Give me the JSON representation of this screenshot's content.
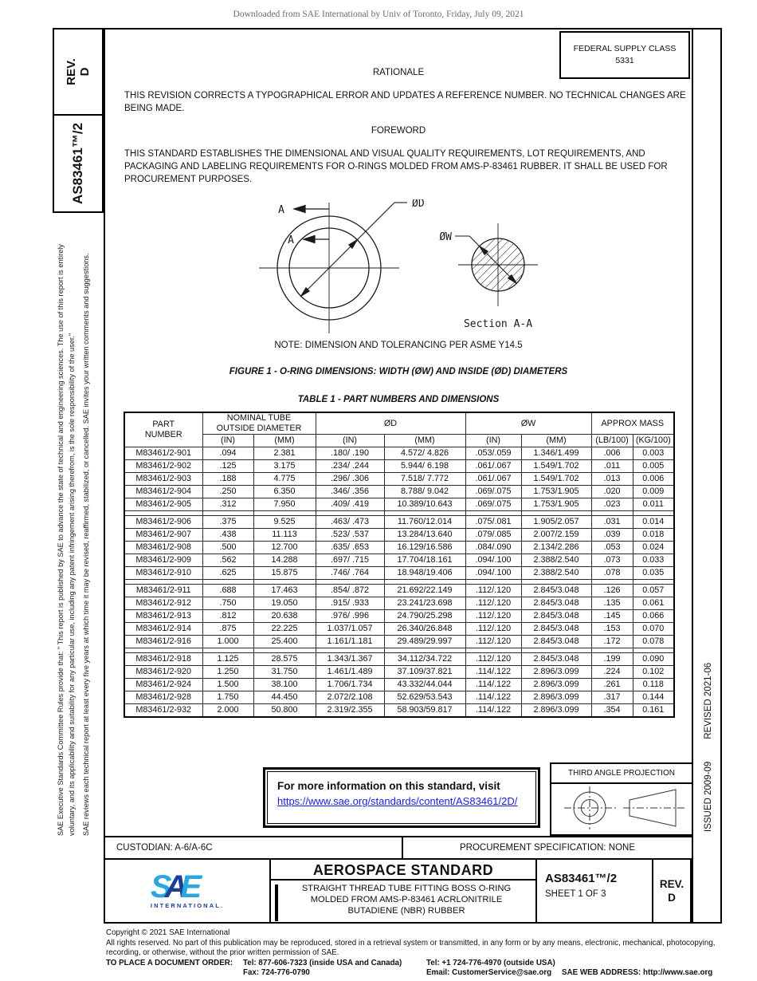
{
  "banner": "Downloaded from SAE International by Univ of Toronto, Friday, July 09, 2021",
  "sidebar": {
    "rev_label": "REV.",
    "rev_value": "D",
    "doc_number": "AS83461™/2",
    "legal_1": "SAE Executive Standards Committee Rules provide that: \" This report is published by SAE to advance the state of technical and engineering sciences. The use of this report is entirely voluntary, and its applicability and suitability for any particular use, including any patent infringement arising therefrom, is the sole responsibility of the user.\"",
    "legal_2": "SAE reviews each technical report at least every five years at which time it may be revised, reaffirmed, stabilized, or cancelled. SAE invites your written comments and suggestions."
  },
  "right_strip": {
    "issued": "ISSUED 2009-09",
    "revised": "REVISED 2021-06"
  },
  "header": {
    "fsc_line1": "FEDERAL SUPPLY CLASS",
    "fsc_line2": "5331"
  },
  "rationale": {
    "heading": "RATIONALE",
    "body": "THIS REVISION CORRECTS A TYPOGRAPHICAL ERROR AND UPDATES A REFERENCE NUMBER. NO TECHNICAL CHANGES ARE BEING MADE."
  },
  "foreword": {
    "heading": "FOREWORD",
    "body": "THIS STANDARD ESTABLISHES THE DIMENSIONAL AND VISUAL QUALITY REQUIREMENTS, LOT REQUIREMENTS, AND PACKAGING AND LABELING REQUIREMENTS FOR O-RINGS MOLDED FROM AMS-P-83461 RUBBER. IT SHALL BE USED FOR PROCUREMENT PURPOSES."
  },
  "figure": {
    "cut_label": "A",
    "label_d": "ØD",
    "label_w": "ØW",
    "section_label": "Section A-A",
    "note": "NOTE: DIMENSION AND TOLERANCING PER ASME Y14.5",
    "caption": "FIGURE 1 - O-RING DIMENSIONS: WIDTH (ØW) AND INSIDE (ØD) DIAMETERS"
  },
  "table": {
    "title": "TABLE 1 - PART NUMBERS AND DIMENSIONS",
    "headers": {
      "part1": "PART",
      "part2": "NUMBER",
      "nominal1": "NOMINAL TUBE",
      "nominal2": "OUTSIDE DIAMETER",
      "od": "ØD",
      "ow": "ØW",
      "mass": "APPROX MASS",
      "in": "(IN)",
      "mm": "(MM)",
      "lb": "(LB/100)",
      "kg": "(KG/100)"
    },
    "groups": [
      [
        [
          "M83461/2-901",
          ".094",
          "2.381",
          ".180/ .190",
          "4.572/ 4.826",
          ".053/.059",
          "1.346/1.499",
          ".006",
          "0.003"
        ],
        [
          "M83461/2-902",
          ".125",
          "3.175",
          ".234/ .244",
          "5.944/ 6.198",
          ".061/.067",
          "1.549/1.702",
          ".011",
          "0.005"
        ],
        [
          "M83461/2-903",
          ".188",
          "4.775",
          ".296/ .306",
          "7.518/ 7.772",
          ".061/.067",
          "1.549/1.702",
          ".013",
          "0.006"
        ],
        [
          "M83461/2-904",
          ".250",
          "6.350",
          ".346/ .356",
          "8.788/ 9.042",
          ".069/.075",
          "1.753/1.905",
          ".020",
          "0.009"
        ],
        [
          "M83461/2-905",
          ".312",
          "7.950",
          ".409/ .419",
          "10.389/10.643",
          ".069/.075",
          "1.753/1.905",
          ".023",
          "0.011"
        ]
      ],
      [
        [
          "M83461/2-906",
          ".375",
          "9.525",
          ".463/ .473",
          "11.760/12.014",
          ".075/.081",
          "1.905/2.057",
          ".031",
          "0.014"
        ],
        [
          "M83461/2-907",
          ".438",
          "11.113",
          ".523/ .537",
          "13.284/13.640",
          ".079/.085",
          "2.007/2.159",
          ".039",
          "0.018"
        ],
        [
          "M83461/2-908",
          ".500",
          "12.700",
          ".635/ .653",
          "16.129/16.586",
          ".084/.090",
          "2.134/2.286",
          ".053",
          "0.024"
        ],
        [
          "M83461/2-909",
          ".562",
          "14.288",
          ".697/ .715",
          "17.704/18.161",
          ".094/.100",
          "2.388/2.540",
          ".073",
          "0.033"
        ],
        [
          "M83461/2-910",
          ".625",
          "15.875",
          ".746/ .764",
          "18.948/19.406",
          ".094/.100",
          "2.388/2.540",
          ".078",
          "0.035"
        ]
      ],
      [
        [
          "M83461/2-911",
          ".688",
          "17.463",
          ".854/ .872",
          "21.692/22.149",
          ".112/.120",
          "2.845/3.048",
          ".126",
          "0.057"
        ],
        [
          "M83461/2-912",
          ".750",
          "19.050",
          ".915/ .933",
          "23.241/23.698",
          ".112/.120",
          "2.845/3.048",
          ".135",
          "0.061"
        ],
        [
          "M83461/2-913",
          ".812",
          "20.638",
          ".976/ .996",
          "24.790/25.298",
          ".112/.120",
          "2.845/3.048",
          ".145",
          "0.066"
        ],
        [
          "M83461/2-914",
          ".875",
          "22.225",
          "1.037/1.057",
          "26.340/26.848",
          ".112/.120",
          "2.845/3.048",
          ".153",
          "0.070"
        ],
        [
          "M83461/2-916",
          "1.000",
          "25.400",
          "1.161/1.181",
          "29.489/29.997",
          ".112/.120",
          "2.845/3.048",
          ".172",
          "0.078"
        ]
      ],
      [
        [
          "M83461/2-918",
          "1.125",
          "28.575",
          "1.343/1.367",
          "34.112/34.722",
          ".112/.120",
          "2.845/3.048",
          ".199",
          "0.090"
        ],
        [
          "M83461/2-920",
          "1.250",
          "31.750",
          "1.461/1.489",
          "37.109/37.821",
          ".114/.122",
          "2.896/3.099",
          ".224",
          "0.102"
        ],
        [
          "M83461/2-924",
          "1.500",
          "38.100",
          "1.706/1.734",
          "43.332/44.044",
          ".114/.122",
          "2.896/3.099",
          ".261",
          "0.118"
        ],
        [
          "M83461/2-928",
          "1.750",
          "44.450",
          "2.072/2.108",
          "52.629/53.543",
          ".114/.122",
          "2.896/3.099",
          ".317",
          "0.144"
        ],
        [
          "M83461/2-932",
          "2.000",
          "50.800",
          "2.319/2.355",
          "58.903/59.817",
          ".114/.122",
          "2.896/3.099",
          ".354",
          "0.161"
        ]
      ]
    ]
  },
  "info_box": {
    "line1": "For more information on this standard, visit",
    "link": "https://www.sae.org/standards/content/AS83461/2D/"
  },
  "projection": {
    "label": "THIRD ANGLE PROJECTION"
  },
  "footer": {
    "custodian": "CUSTODIAN: A-6/A-6C",
    "procurement": "PROCUREMENT SPECIFICATION: NONE",
    "logo": {
      "s": "S",
      "a": "A",
      "e": "E",
      "intl": "INTERNATIONAL."
    },
    "standard_type": "AEROSPACE STANDARD",
    "title": "STRAIGHT THREAD TUBE FITTING BOSS O-RING MOLDED FROM AMS-P-83461 ACRLONITRILE BUTADIENE (NBR) RUBBER",
    "doc_number": "AS83461™/2",
    "sheet": "SHEET 1 OF 3",
    "rev_label": "REV.",
    "rev_value": "D"
  },
  "copyright": {
    "line1": "Copyright © 2021 SAE International",
    "line2": "All rights reserved. No part of this publication may be reproduced, stored in a retrieval system or transmitted, in any form or by any means, electronic, mechanical, photocopying, recording, or otherwise, without the prior written permission of SAE.",
    "order": {
      "label": "TO PLACE A DOCUMENT ORDER:",
      "tel_inside": "Tel: 877-606-7323 (inside USA and Canada)",
      "tel_outside": "Tel: +1 724-776-4970 (outside USA)",
      "fax": "Fax: 724-776-0790",
      "email": "Email: CustomerService@sae.org",
      "web": "SAE WEB ADDRESS: http://www.sae.org"
    }
  },
  "colors": {
    "sae_light_blue": "#2aa7e0",
    "sae_dark_blue": "#1c3e95",
    "link_blue": "#1a1aea"
  }
}
